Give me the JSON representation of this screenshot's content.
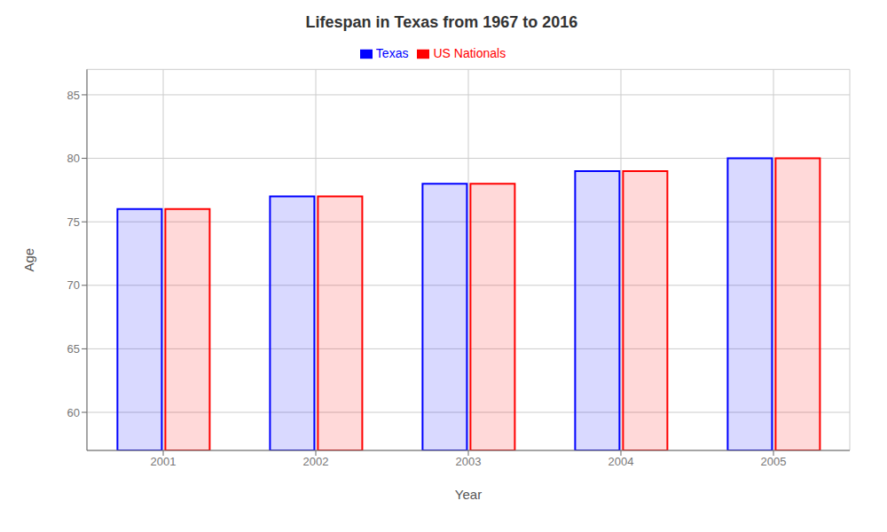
{
  "chart_data": {
    "type": "bar",
    "title": "Lifespan in Texas from 1967 to 2016",
    "xlabel": "Year",
    "ylabel": "Age",
    "categories": [
      "2001",
      "2002",
      "2003",
      "2004",
      "2005"
    ],
    "series": [
      {
        "name": "Texas",
        "color": "#0000ff",
        "values": [
          76,
          77,
          78,
          79,
          80
        ]
      },
      {
        "name": "US Nationals",
        "color": "#ff0000",
        "values": [
          76,
          77,
          78,
          79,
          80
        ]
      }
    ],
    "ylim": [
      57,
      87
    ],
    "yticks": [
      60,
      65,
      70,
      75,
      80,
      85
    ],
    "grid": true,
    "legend": "top"
  }
}
